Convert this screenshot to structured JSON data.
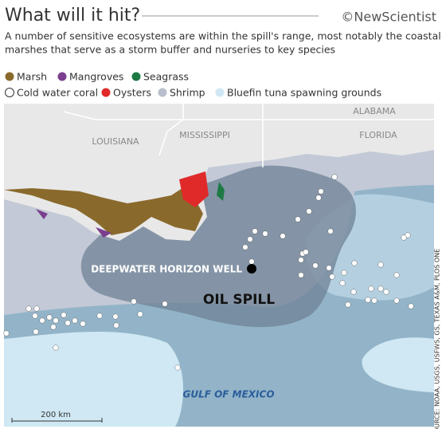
{
  "header": {
    "title": "What will it hit?",
    "credit": "©NewScientist",
    "subtitle_lines": [
      "A number of sensitive ecosystems are within the spill's range, most notably the coastal",
      "marshes that serve as a storm buffer and nurseries to key species"
    ]
  },
  "legend": {
    "items": [
      {
        "label": "Marsh",
        "color": "#8a6a2c"
      },
      {
        "label": "Mangroves",
        "color": "#7b3f8f"
      },
      {
        "label": "Seagrass",
        "color": "#1e7a45"
      },
      {
        "label": "Cold water coral",
        "color": "#ffffff"
      },
      {
        "label": "Oysters",
        "color": "#e02a2a"
      },
      {
        "label": "Shrimp",
        "color": "#b9bfcc"
      },
      {
        "label": "Bluefin tuna spawning grounds",
        "color": "#cfe8f4"
      }
    ]
  },
  "map": {
    "states": [
      "ALABAMA",
      "LOUISIANA",
      "MISSISSIPPI",
      "FLORIDA"
    ],
    "well": "DEEPWATER HORIZON WELL",
    "spill": "OIL SPILL",
    "sea": "GULF OF MEXICO",
    "scale": "200 km",
    "source": "SOURCE: NOAA, USGS, USFWS, GS, TEXAS A&M, PLOS ONE"
  }
}
